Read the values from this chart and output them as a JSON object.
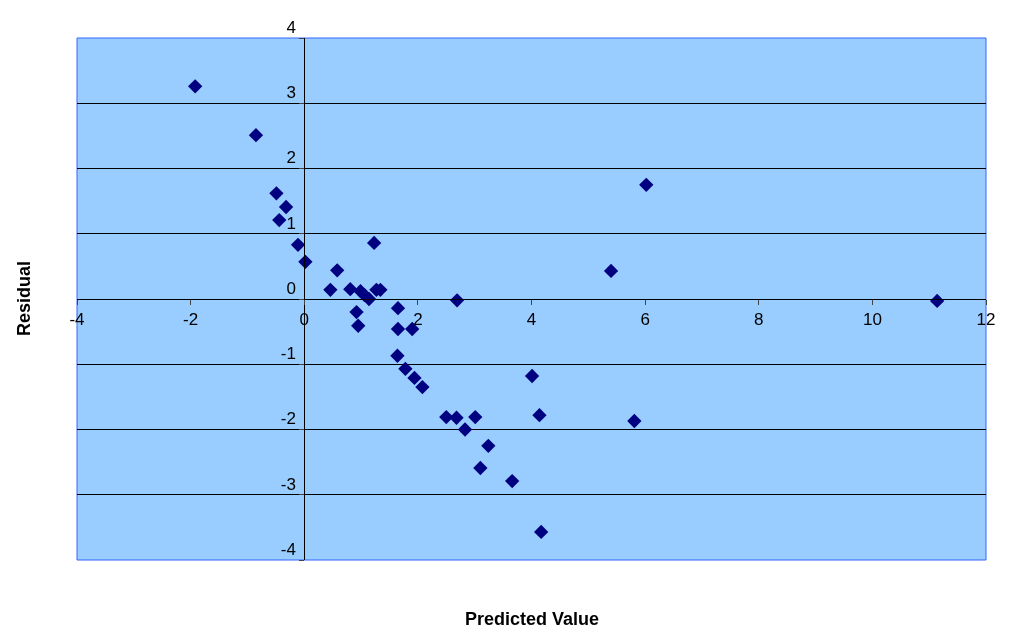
{
  "chart_data": {
    "type": "scatter",
    "xlabel": "Predicted Value",
    "ylabel": "Residual",
    "x": [
      -1.92,
      -0.85,
      -0.49,
      -0.32,
      -0.44,
      -0.11,
      0.02,
      0.58,
      0.46,
      0.81,
      0.92,
      0.95,
      0.99,
      1.06,
      1.14,
      1.23,
      1.27,
      1.34,
      1.65,
      1.65,
      1.9,
      1.64,
      1.78,
      1.94,
      2.08,
      2.69,
      2.5,
      2.68,
      3.01,
      2.83,
      3.24,
      3.1,
      3.66,
      4.01,
      4.14,
      4.17,
      5.4,
      6.02,
      5.81,
      11.14
    ],
    "series": [
      {
        "color": "#000080",
        "values": [
          3.26,
          2.51,
          1.62,
          1.41,
          1.21,
          0.83,
          0.57,
          0.44,
          0.14,
          0.15,
          -0.2,
          -0.41,
          0.12,
          0.06,
          0.0,
          0.86,
          0.14,
          0.14,
          -0.14,
          -0.46,
          -0.46,
          -0.87,
          -1.07,
          -1.21,
          -1.35,
          -0.02,
          -1.81,
          -1.82,
          -1.81,
          -2.0,
          -2.25,
          -2.59,
          -2.79,
          -1.18,
          -1.78,
          -3.57,
          0.43,
          1.75,
          -1.87,
          -0.03
        ]
      }
    ],
    "xlim": [
      -4,
      12
    ],
    "xticks": [
      -4,
      -2,
      0,
      2,
      4,
      6,
      8,
      10,
      12
    ],
    "ylim": [
      -4,
      4
    ],
    "yticks": [
      -4,
      -3,
      -2,
      -1,
      0,
      1,
      2,
      3,
      4
    ],
    "grid": "y",
    "marker": "diamond"
  }
}
